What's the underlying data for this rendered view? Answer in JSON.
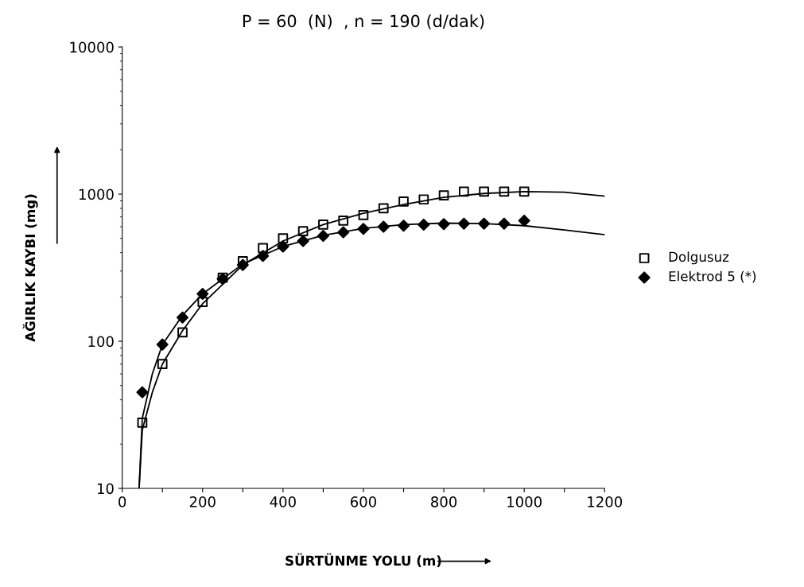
{
  "chart_data": {
    "type": "scatter",
    "title": "P = 60  (N)  , n = 190 (d/dak)",
    "xlabel": "SÜRTÜNME YOLU (m)",
    "ylabel": "AĞIRLIK KAYBI (mg)",
    "log": "y",
    "xlim": [
      0,
      1200
    ],
    "ylim": [
      10,
      10000
    ],
    "xticks": [
      0,
      {
        "value": 100,
        "label": null
      },
      200,
      {
        "value": 300,
        "label": null
      },
      400,
      {
        "value": 500,
        "label": null
      },
      600,
      {
        "value": 700,
        "label": null
      },
      800,
      {
        "value": 900,
        "label": null
      },
      1000,
      {
        "value": 1100,
        "label": null
      },
      1200
    ],
    "yticks": [
      10,
      100,
      1000,
      10000
    ],
    "grid": false,
    "legend": "right",
    "series": [
      {
        "name": "Dolgusuz",
        "marker": "square",
        "color": "#000000",
        "x": [
          50,
          100,
          150,
          200,
          250,
          300,
          350,
          400,
          450,
          500,
          550,
          600,
          650,
          700,
          750,
          800,
          850,
          900,
          950,
          1000
        ],
        "values": [
          28,
          70,
          115,
          185,
          270,
          350,
          430,
          500,
          560,
          620,
          660,
          720,
          800,
          890,
          920,
          980,
          1040,
          1040,
          1040,
          1040
        ]
      },
      {
        "name": "Elektrod 5 (*)",
        "marker": "diamond",
        "color": "#000000",
        "x": [
          50,
          100,
          150,
          200,
          250,
          300,
          350,
          400,
          450,
          500,
          550,
          600,
          650,
          700,
          750,
          800,
          850,
          900,
          950,
          1000
        ],
        "values": [
          45,
          95,
          145,
          210,
          265,
          330,
          380,
          440,
          480,
          520,
          550,
          580,
          600,
          610,
          620,
          625,
          630,
          630,
          630,
          660
        ]
      },
      {
        "type": "line",
        "marker": "none",
        "color": "#000000",
        "x": [
          42,
          50,
          75,
          100,
          150,
          200,
          300,
          400,
          500,
          600,
          700,
          800,
          900,
          1000,
          1100,
          1200
        ],
        "values": [
          10,
          25,
          45,
          70,
          118,
          180,
          330,
          480,
          620,
          740,
          850,
          950,
          1010,
          1040,
          1030,
          970
        ]
      },
      {
        "type": "line",
        "marker": "none",
        "color": "#000000",
        "x": [
          42,
          50,
          75,
          100,
          150,
          200,
          300,
          400,
          500,
          600,
          700,
          800,
          900,
          1000,
          1100,
          1200
        ],
        "values": [
          10,
          30,
          60,
          95,
          150,
          210,
          335,
          440,
          525,
          585,
          620,
          635,
          630,
          610,
          570,
          530
        ]
      }
    ]
  }
}
